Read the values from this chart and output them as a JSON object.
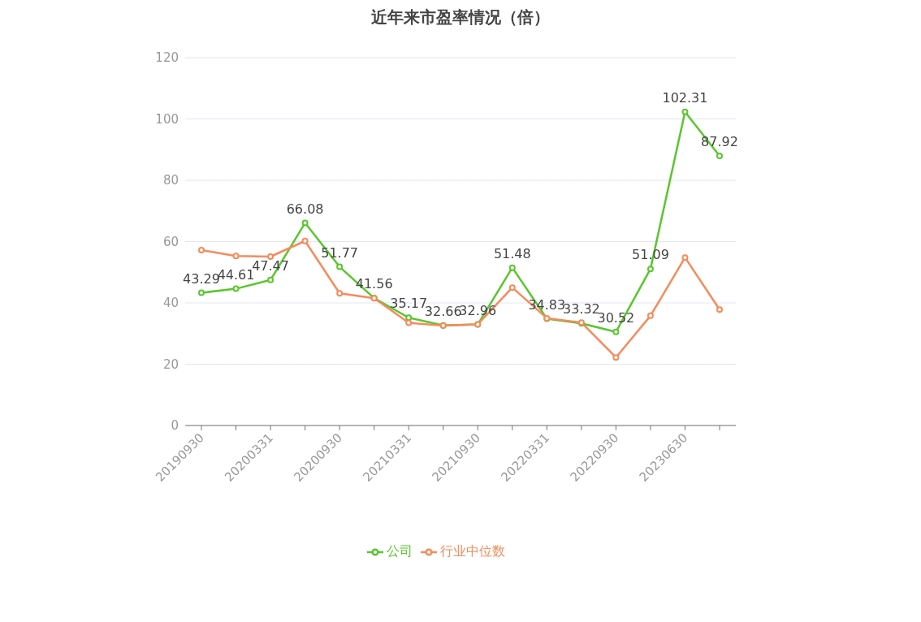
{
  "chart_data": {
    "type": "line",
    "title": "近年来市盈率情况（倍）",
    "categories": [
      "20190930",
      null,
      "20200331",
      null,
      "20200930",
      null,
      "20210331",
      null,
      "20210930",
      null,
      "20220331",
      null,
      "20220930",
      null,
      "20230630",
      null
    ],
    "series": [
      {
        "name": "公司",
        "color": "#5ac62d",
        "values": [
          43.29,
          44.61,
          47.47,
          66.08,
          51.77,
          41.56,
          35.17,
          32.66,
          32.96,
          51.48,
          34.83,
          33.32,
          30.52,
          51.09,
          102.31,
          87.92
        ],
        "value_labels": [
          "43.29",
          "44.61",
          "47.47",
          "66.08",
          "51.77",
          "41.56",
          "35.17",
          "32.66",
          "32.96",
          "51.48",
          "34.83",
          "33.32",
          "30.52",
          "51.09",
          "102.31",
          "87.92"
        ]
      },
      {
        "name": "行业中位数",
        "color": "#f58b5c",
        "values": [
          57.2,
          55.3,
          55.1,
          60.2,
          43.1,
          41.5,
          33.5,
          32.6,
          33.0,
          45.0,
          35.0,
          33.6,
          22.2,
          35.8,
          54.8,
          37.8
        ]
      }
    ],
    "ylim": [
      0,
      120
    ],
    "yticks": [
      0,
      20,
      40,
      60,
      80,
      100,
      120
    ],
    "grid": "y",
    "legend": "bottom",
    "marker": "circle",
    "line_style": "solid"
  }
}
